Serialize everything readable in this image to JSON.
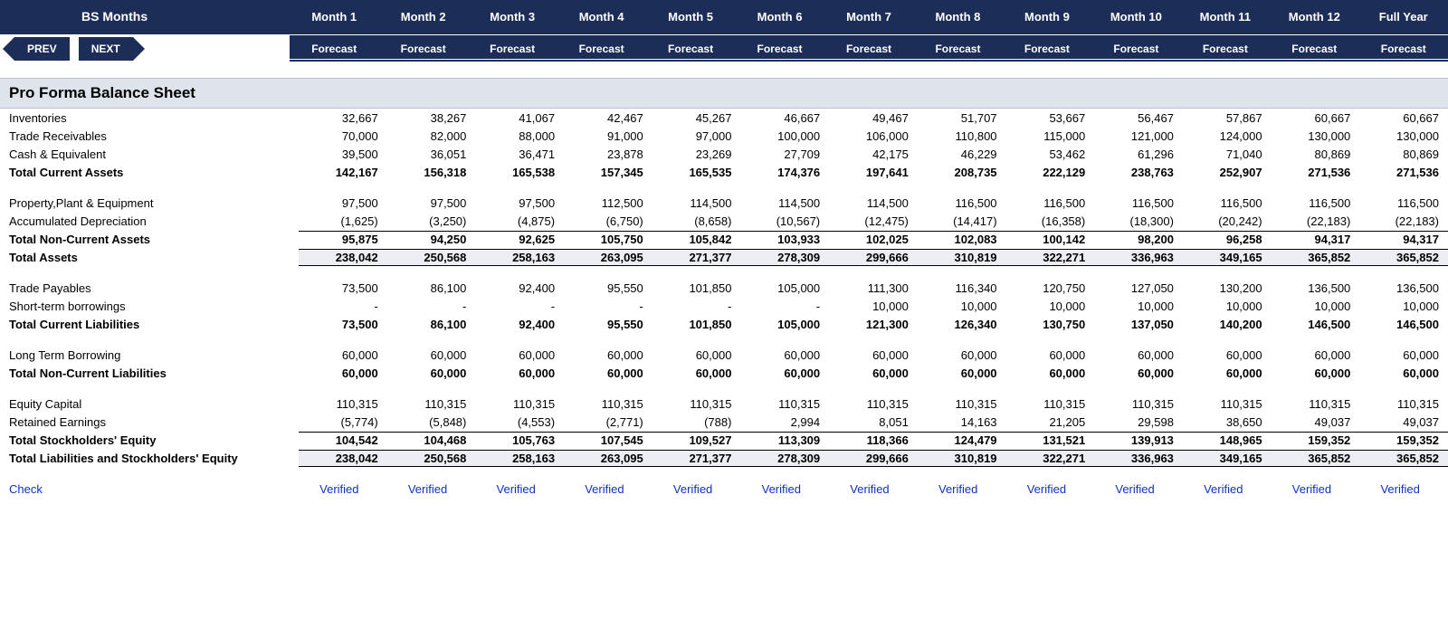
{
  "header": {
    "title": "BS Months",
    "nav_prev": "PREV",
    "nav_next": "NEXT",
    "months": [
      "Month 1",
      "Month 2",
      "Month 3",
      "Month 4",
      "Month 5",
      "Month 6",
      "Month 7",
      "Month 8",
      "Month 9",
      "Month 10",
      "Month 11",
      "Month 12",
      "Full Year"
    ],
    "subhead": [
      "Forecast",
      "Forecast",
      "Forecast",
      "Forecast",
      "Forecast",
      "Forecast",
      "Forecast",
      "Forecast",
      "Forecast",
      "Forecast",
      "Forecast",
      "Forecast",
      "Forecast"
    ]
  },
  "section_title": "Pro Forma Balance Sheet",
  "rows": [
    {
      "label": "Inventories",
      "vals": [
        "32,667",
        "38,267",
        "41,067",
        "42,467",
        "45,267",
        "46,667",
        "49,467",
        "51,707",
        "53,667",
        "56,467",
        "57,867",
        "60,667",
        "60,667"
      ]
    },
    {
      "label": "Trade Receivables",
      "vals": [
        "70,000",
        "82,000",
        "88,000",
        "91,000",
        "97,000",
        "100,000",
        "106,000",
        "110,800",
        "115,000",
        "121,000",
        "124,000",
        "130,000",
        "130,000"
      ]
    },
    {
      "label": "Cash  & Equivalent",
      "vals": [
        "39,500",
        "36,051",
        "36,471",
        "23,878",
        "23,269",
        "27,709",
        "42,175",
        "46,229",
        "53,462",
        "61,296",
        "71,040",
        "80,869",
        "80,869"
      ]
    },
    {
      "label": "Total Current Assets",
      "bold": true,
      "vals": [
        "142,167",
        "156,318",
        "165,538",
        "157,345",
        "165,535",
        "174,376",
        "197,641",
        "208,735",
        "222,129",
        "238,763",
        "252,907",
        "271,536",
        "271,536"
      ]
    },
    {
      "spacer": true
    },
    {
      "label": "Property,Plant & Equipment",
      "vals": [
        "97,500",
        "97,500",
        "97,500",
        "112,500",
        "114,500",
        "114,500",
        "114,500",
        "116,500",
        "116,500",
        "116,500",
        "116,500",
        "116,500",
        "116,500"
      ]
    },
    {
      "label": "Accumulated Depreciation",
      "vals": [
        "(1,625)",
        "(3,250)",
        "(4,875)",
        "(6,750)",
        "(8,658)",
        "(10,567)",
        "(12,475)",
        "(14,417)",
        "(16,358)",
        "(18,300)",
        "(20,242)",
        "(22,183)",
        "(22,183)"
      ]
    },
    {
      "label": "Total Non-Current Assets",
      "bold": true,
      "topline": true,
      "vals": [
        "95,875",
        "94,250",
        "92,625",
        "105,750",
        "105,842",
        "103,933",
        "102,025",
        "102,083",
        "100,142",
        "98,200",
        "96,258",
        "94,317",
        "94,317"
      ]
    },
    {
      "label": "Total Assets",
      "bold": true,
      "shade": true,
      "dbltop": true,
      "dblbot": true,
      "vals": [
        "238,042",
        "250,568",
        "258,163",
        "263,095",
        "271,377",
        "278,309",
        "299,666",
        "310,819",
        "322,271",
        "336,963",
        "349,165",
        "365,852",
        "365,852"
      ]
    },
    {
      "spacer": true
    },
    {
      "label": "Trade Payables",
      "vals": [
        "73,500",
        "86,100",
        "92,400",
        "95,550",
        "101,850",
        "105,000",
        "111,300",
        "116,340",
        "120,750",
        "127,050",
        "130,200",
        "136,500",
        "136,500"
      ]
    },
    {
      "label": "Short-term borrowings",
      "vals": [
        "-",
        "-",
        "-",
        "-",
        "-",
        "-",
        "10,000",
        "10,000",
        "10,000",
        "10,000",
        "10,000",
        "10,000",
        "10,000"
      ]
    },
    {
      "label": "Total Current Liabilities",
      "bold": true,
      "vals": [
        "73,500",
        "86,100",
        "92,400",
        "95,550",
        "101,850",
        "105,000",
        "121,300",
        "126,340",
        "130,750",
        "137,050",
        "140,200",
        "146,500",
        "146,500"
      ]
    },
    {
      "spacer": true
    },
    {
      "label": "Long Term Borrowing",
      "vals": [
        "60,000",
        "60,000",
        "60,000",
        "60,000",
        "60,000",
        "60,000",
        "60,000",
        "60,000",
        "60,000",
        "60,000",
        "60,000",
        "60,000",
        "60,000"
      ]
    },
    {
      "label": "Total Non-Current Liabilities",
      "bold": true,
      "vals": [
        "60,000",
        "60,000",
        "60,000",
        "60,000",
        "60,000",
        "60,000",
        "60,000",
        "60,000",
        "60,000",
        "60,000",
        "60,000",
        "60,000",
        "60,000"
      ]
    },
    {
      "spacer": true
    },
    {
      "label": "Equity Capital",
      "vals": [
        "110,315",
        "110,315",
        "110,315",
        "110,315",
        "110,315",
        "110,315",
        "110,315",
        "110,315",
        "110,315",
        "110,315",
        "110,315",
        "110,315",
        "110,315"
      ]
    },
    {
      "label": "Retained Earnings",
      "vals": [
        "(5,774)",
        "(5,848)",
        "(4,553)",
        "(2,771)",
        "(788)",
        "2,994",
        "8,051",
        "14,163",
        "21,205",
        "29,598",
        "38,650",
        "49,037",
        "49,037"
      ]
    },
    {
      "label": "Total Stockholders' Equity",
      "bold": true,
      "topline": true,
      "vals": [
        "104,542",
        "104,468",
        "105,763",
        "107,545",
        "109,527",
        "113,309",
        "118,366",
        "124,479",
        "131,521",
        "139,913",
        "148,965",
        "159,352",
        "159,352"
      ]
    },
    {
      "label": "Total Liabilities and Stockholders' Equity",
      "bold": true,
      "shade": true,
      "dbltop": true,
      "dblbot": true,
      "vals": [
        "238,042",
        "250,568",
        "258,163",
        "263,095",
        "271,377",
        "278,309",
        "299,666",
        "310,819",
        "322,271",
        "336,963",
        "349,165",
        "365,852",
        "365,852"
      ]
    },
    {
      "spacer": true
    },
    {
      "label": "Check",
      "check": true,
      "vals": [
        "Verified",
        "Verified",
        "Verified",
        "Verified",
        "Verified",
        "Verified",
        "Verified",
        "Verified",
        "Verified",
        "Verified",
        "Verified",
        "Verified",
        "Verified"
      ]
    }
  ],
  "colors": {
    "header_bg": "#1c2e58",
    "header_fg": "#ffffff",
    "section_bg": "#dfe3ec",
    "shade_bg": "#eceef3",
    "check_fg": "#1030c0"
  }
}
